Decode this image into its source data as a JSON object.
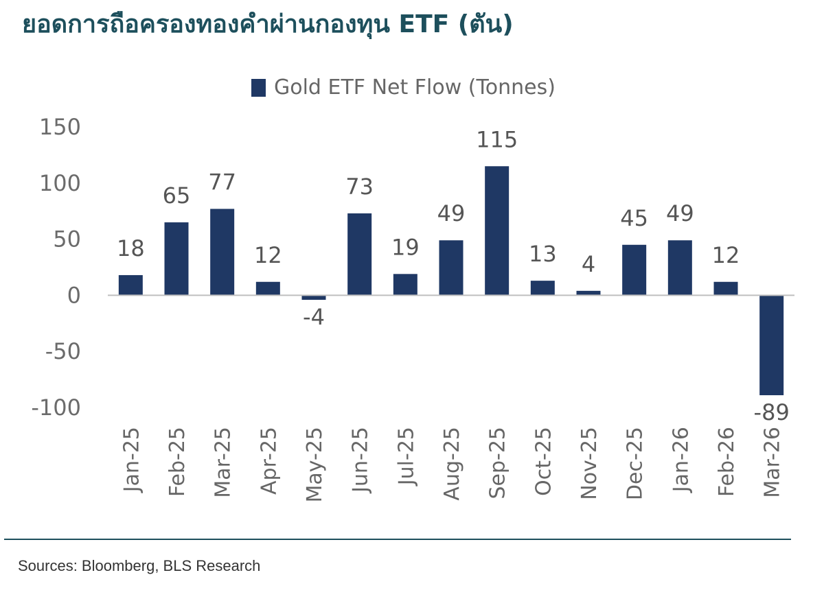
{
  "page": {
    "title": "ยอดการถือครองทองคำผ่านกองทุน ETF (ตัน)",
    "source": "Sources: Bloomberg, BLS Research"
  },
  "colors": {
    "bar": "#1f3864",
    "title": "#1d4f5c",
    "axis": "#bfbfbf"
  },
  "chart_data": {
    "type": "bar",
    "title": "",
    "legend": {
      "label": "Gold ETF Net Flow (Tonnes)",
      "position": "top-center"
    },
    "xlabel": "",
    "ylabel": "",
    "ylim": [
      -100,
      150
    ],
    "yticks": [
      150,
      100,
      50,
      0,
      -50,
      -100
    ],
    "grid": false,
    "categories": [
      "Jan-25",
      "Feb-25",
      "Mar-25",
      "Apr-25",
      "May-25",
      "Jun-25",
      "Jul-25",
      "Aug-25",
      "Sep-25",
      "Oct-25",
      "Nov-25",
      "Dec-25",
      "Jan-26",
      "Feb-26",
      "Mar-26"
    ],
    "series": [
      {
        "name": "Gold ETF Net Flow (Tonnes)",
        "values": [
          18,
          65,
          77,
          12,
          -4,
          73,
          19,
          49,
          115,
          13,
          4,
          45,
          49,
          12,
          -89
        ]
      }
    ]
  }
}
